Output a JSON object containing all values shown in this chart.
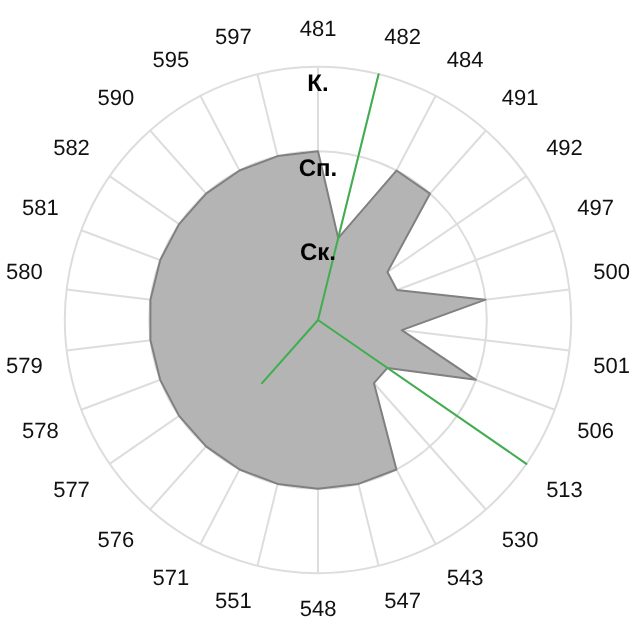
{
  "chart_data": {
    "type": "radar",
    "categories": [
      "481",
      "482",
      "484",
      "491",
      "492",
      "497",
      "500",
      "501",
      "506",
      "513",
      "530",
      "543",
      "547",
      "548",
      "551",
      "571",
      "576",
      "577",
      "578",
      "579",
      "580",
      "581",
      "582",
      "590",
      "595",
      "597"
    ],
    "series": [
      {
        "color": "#b4b4b4",
        "values": [
          2,
          1,
          2,
          2,
          1,
          1,
          2,
          1,
          2,
          1,
          1,
          2,
          2,
          2,
          2,
          2,
          2,
          2,
          2,
          2,
          2,
          2,
          2,
          2,
          2,
          2
        ]
      },
      {
        "color": "#3fae4f",
        "values": [
          0,
          3,
          0,
          0,
          0,
          0,
          0,
          0,
          0,
          3,
          0,
          0,
          0,
          0,
          0,
          0,
          1,
          0,
          0,
          0,
          0,
          0,
          0,
          0,
          0,
          0
        ]
      }
    ],
    "ylim": [
      0,
      3
    ],
    "yticks": [
      {
        "value": 1,
        "label": "Ск."
      },
      {
        "value": 2,
        "label": "Сп."
      },
      {
        "value": 3,
        "label": "К."
      }
    ],
    "grid": true,
    "legend": false
  }
}
